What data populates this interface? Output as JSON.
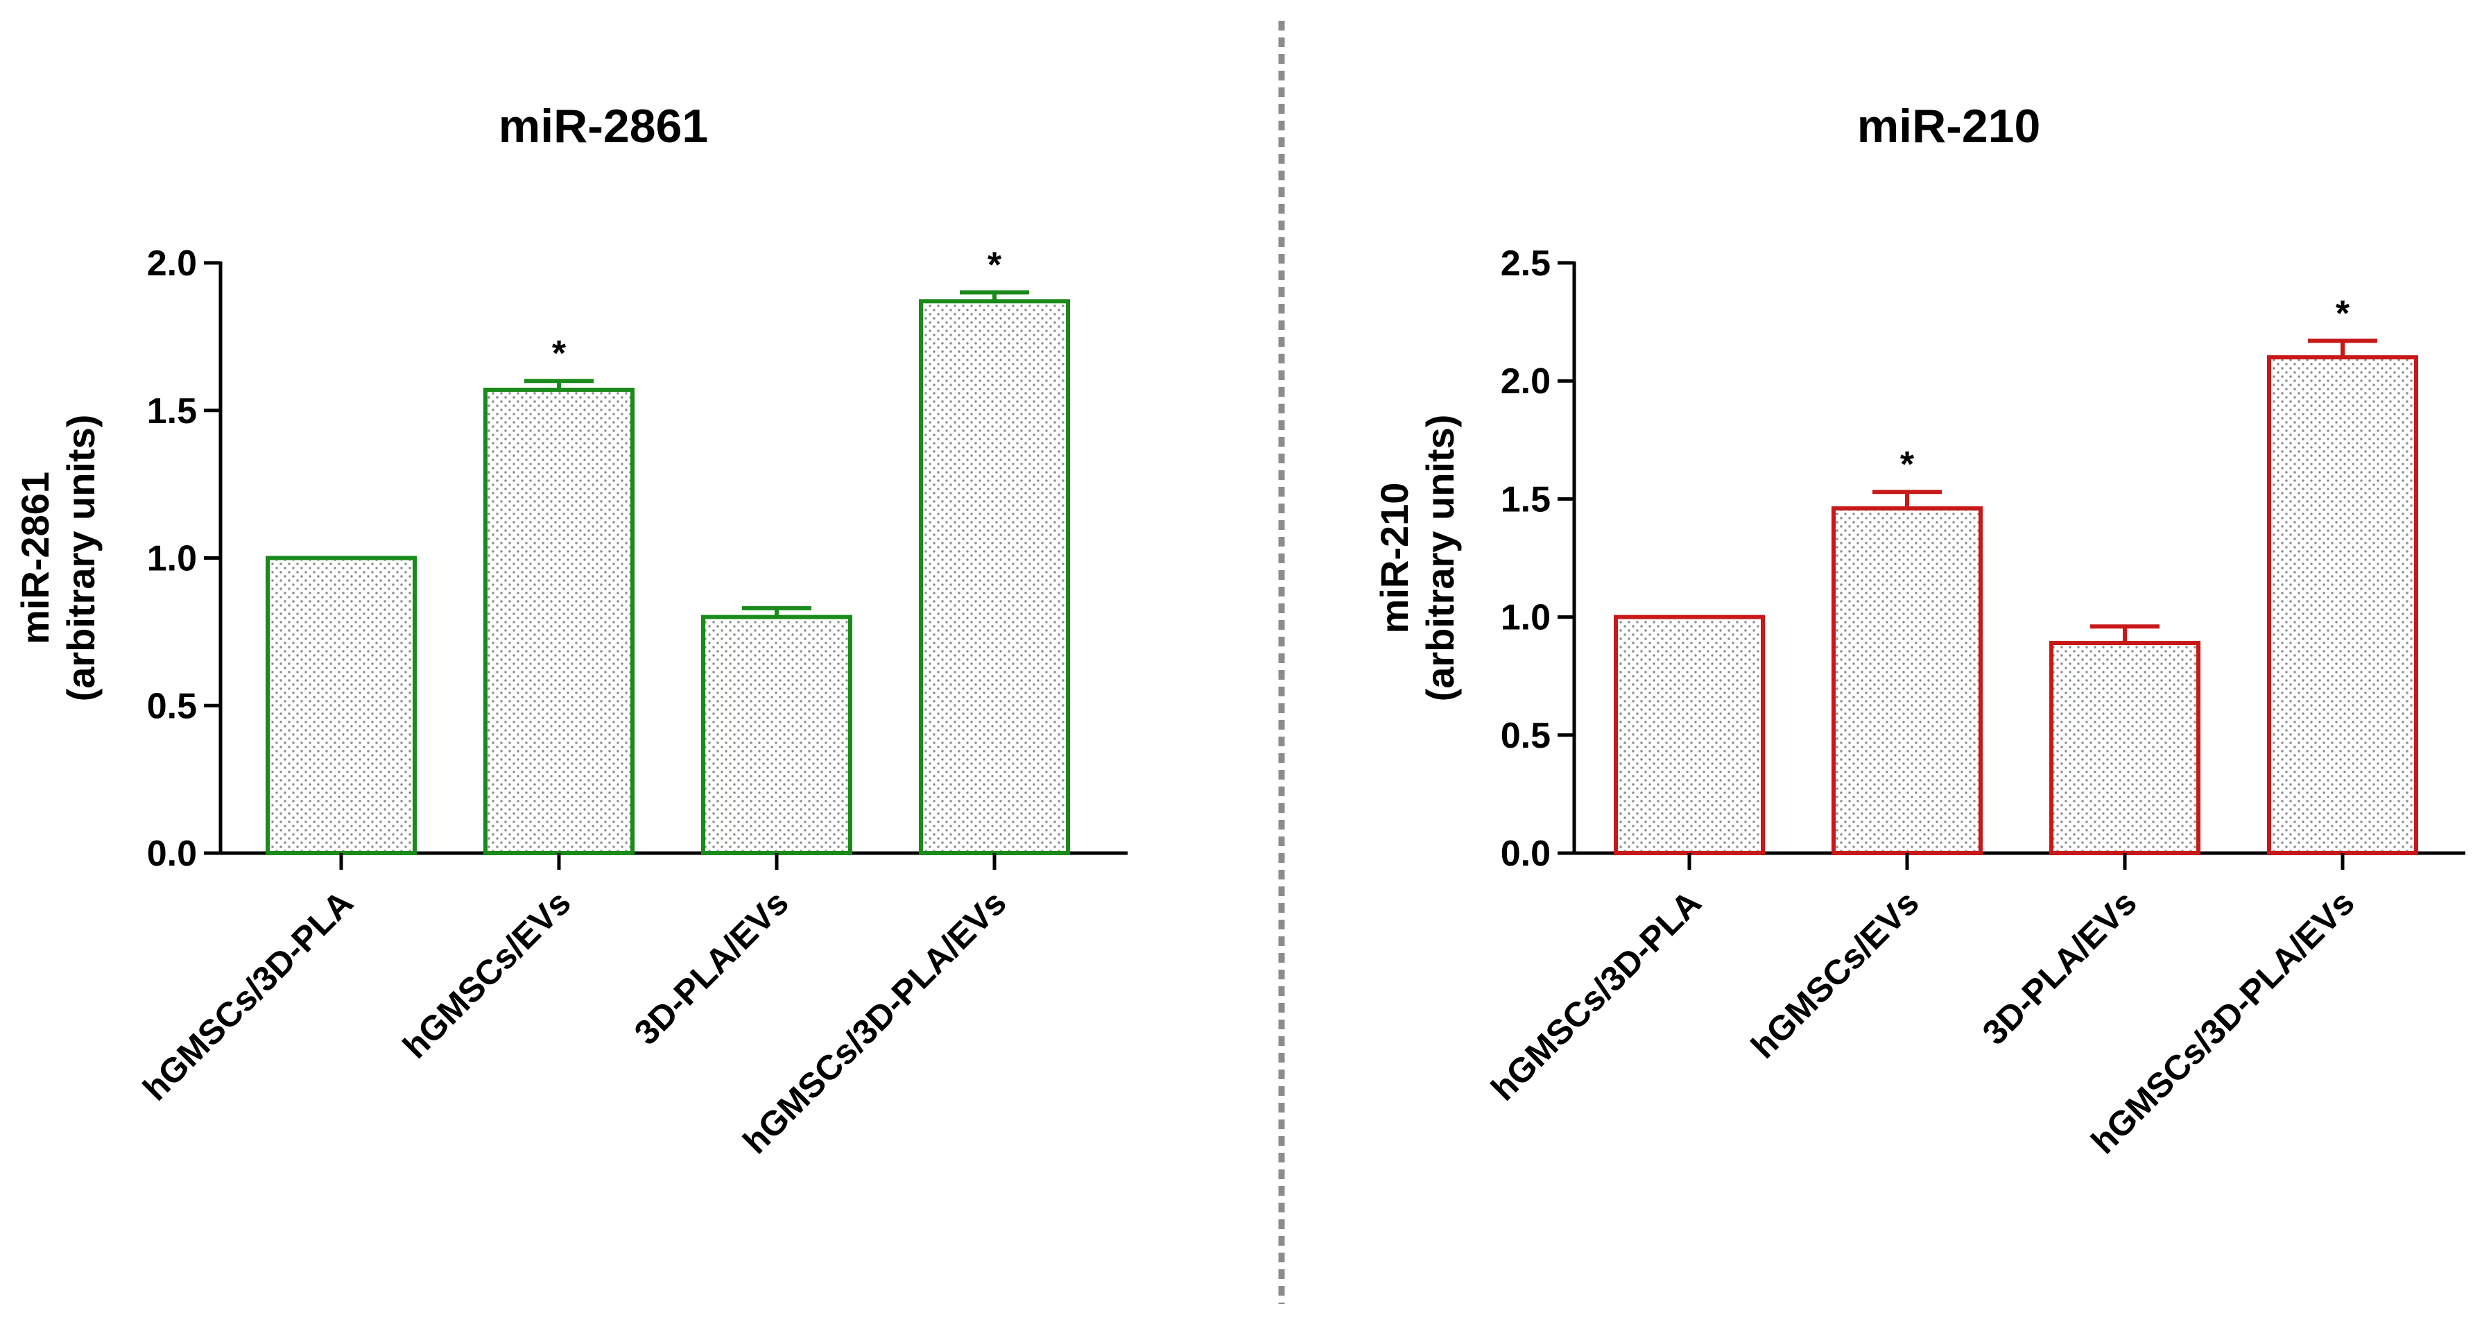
{
  "divider_color": "#8c8c8c",
  "chart_data": [
    {
      "type": "bar",
      "title": "miR-2861",
      "ylabel_line1": "miR-2861",
      "ylabel_line2": "(arbitrary units)",
      "color": "#1a8a1a",
      "categories": [
        "hGMSCs/3D-PLA",
        "hGMSCs/EVs",
        "3D-PLA/EVs",
        "hGMSCs/3D-PLA/EVs"
      ],
      "values": [
        1.0,
        1.57,
        0.8,
        1.87
      ],
      "errors": [
        0.0,
        0.03,
        0.03,
        0.03
      ],
      "significance": [
        "",
        "*",
        "",
        "*"
      ],
      "yticks": [
        0.0,
        0.5,
        1.0,
        1.5,
        2.0
      ],
      "ytick_labels": [
        "0.0",
        "0.5",
        "1.0",
        "1.5",
        "2.0"
      ],
      "ylim": [
        0,
        2.0
      ]
    },
    {
      "type": "bar",
      "title": "miR-210",
      "ylabel_line1": "miR-210",
      "ylabel_line2": "(arbitrary units)",
      "color": "#c81818",
      "categories": [
        "hGMSCs/3D-PLA",
        "hGMSCs/EVs",
        "3D-PLA/EVs",
        "hGMSCs/3D-PLA/EVs"
      ],
      "values": [
        1.0,
        1.46,
        0.89,
        2.1
      ],
      "errors": [
        0.0,
        0.07,
        0.07,
        0.07
      ],
      "significance": [
        "",
        "*",
        "",
        "*"
      ],
      "yticks": [
        0.0,
        0.5,
        1.0,
        1.5,
        2.0,
        2.5
      ],
      "ytick_labels": [
        "0.0",
        "0.5",
        "1.0",
        "1.5",
        "2.0",
        "2.5"
      ],
      "ylim": [
        0,
        2.5
      ]
    }
  ]
}
